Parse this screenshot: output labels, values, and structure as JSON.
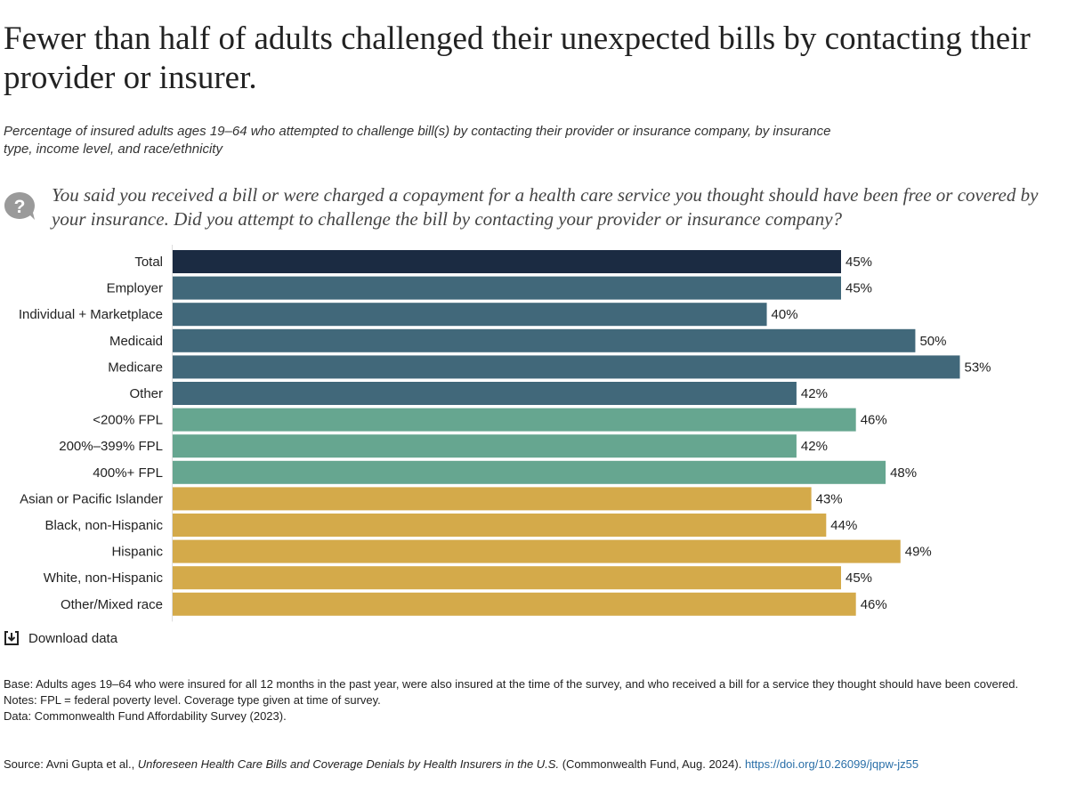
{
  "title": "Fewer than half of adults challenged their unexpected bills by contacting their provider or insurer.",
  "subtitle": "Percentage of insured adults ages 19–64 who attempted to challenge bill(s) by contacting their provider or insurance company, by insurance type, income level, and race/ethnicity",
  "question": "You said you received a bill or were charged a copayment for a health care service you thought should have been free or covered by your insurance. Did you attempt to challenge the bill by contacting your provider or insurance company?",
  "icons": {
    "question": "question-bubble-icon",
    "download": "download-icon"
  },
  "download_label": "Download data",
  "notes": {
    "base": "Base: Adults ages 19–64 who were insured for all 12 months in the past year, were also insured at the time of the survey, and who received a bill for a service they thought should have been covered.",
    "notes": "Notes: FPL = federal poverty level. Coverage type given at time of survey.",
    "data": "Data: Commonwealth Fund Affordability Survey (2023)."
  },
  "source": {
    "prefix": "Source: Avni Gupta et al., ",
    "title": "Unforeseen Health Care Bills and Coverage Denials by Health Insurers in the U.S.",
    "suffix": " (Commonwealth Fund, Aug. 2024). ",
    "link": "https://doi.org/10.26099/jqpw-jz55"
  },
  "colors": {
    "total": "#1b2b42",
    "insurance": "#41687a",
    "income": "#66a690",
    "race": "#d4aa4a"
  },
  "chart_data": {
    "type": "bar",
    "orientation": "horizontal",
    "categories": [
      "Total",
      "Employer",
      "Individual + Marketplace",
      "Medicaid",
      "Medicare",
      "Other",
      "<200% FPL",
      "200%–399% FPL",
      "400%+ FPL",
      "Asian or Pacific Islander",
      "Black, non-Hispanic",
      "Hispanic",
      "White, non-Hispanic",
      "Other/Mixed race"
    ],
    "values": [
      45,
      45,
      40,
      50,
      53,
      42,
      46,
      42,
      48,
      43,
      44,
      49,
      45,
      46
    ],
    "groups": [
      "total",
      "insurance",
      "insurance",
      "insurance",
      "insurance",
      "insurance",
      "income",
      "income",
      "income",
      "race",
      "race",
      "race",
      "race",
      "race"
    ],
    "value_labels": [
      "45%",
      "45%",
      "40%",
      "50%",
      "53%",
      "42%",
      "46%",
      "42%",
      "48%",
      "43%",
      "44%",
      "49%",
      "45%",
      "46%"
    ],
    "xlim": [
      0,
      60
    ],
    "grid": false
  }
}
